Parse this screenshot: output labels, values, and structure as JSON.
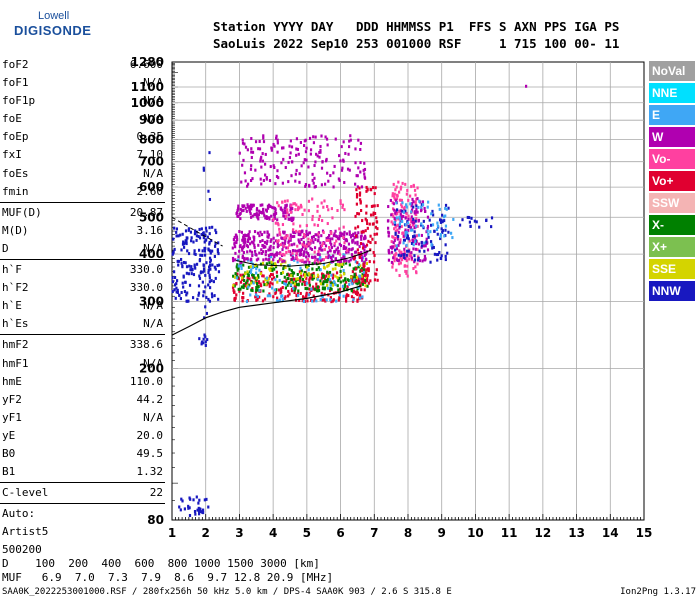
{
  "logo": {
    "line1": "Lowell",
    "line2": "DIGISONDE"
  },
  "header": {
    "row1": "Station YYYY DAY   DDD HHMMSS P1  FFS S AXN PPS IGA PS",
    "row2": "SaoLuis 2022 Sep10 253 001000 RSF     1 715 100 00- 11"
  },
  "params": {
    "group1": [
      {
        "name": "foF2",
        "value": "6.600"
      },
      {
        "name": "foF1",
        "value": "N/A"
      },
      {
        "name": "foF1p",
        "value": "N/A"
      },
      {
        "name": "foE",
        "value": "N/A"
      },
      {
        "name": "foEp",
        "value": "0.35"
      },
      {
        "name": "fxI",
        "value": "7.10"
      },
      {
        "name": "foEs",
        "value": "N/A"
      },
      {
        "name": "fmin",
        "value": "2.60"
      }
    ],
    "group2": [
      {
        "name": "MUF(D)",
        "value": "20.87"
      },
      {
        "name": "M(D)",
        "value": "3.16"
      },
      {
        "name": "D",
        "value": "N/A"
      }
    ],
    "group3": [
      {
        "name": "h`F",
        "value": "330.0"
      },
      {
        "name": "h`F2",
        "value": "330.0"
      },
      {
        "name": "h`E",
        "value": "N/A"
      },
      {
        "name": "h`Es",
        "value": "N/A"
      }
    ],
    "group4": [
      {
        "name": "hmF2",
        "value": "338.6"
      },
      {
        "name": "hmF1",
        "value": "N/A"
      },
      {
        "name": "hmE",
        "value": "110.0"
      },
      {
        "name": "yF2",
        "value": "44.2"
      },
      {
        "name": "yF1",
        "value": "N/A"
      },
      {
        "name": "yE",
        "value": "20.0"
      },
      {
        "name": "B0",
        "value": "49.5"
      },
      {
        "name": "B1",
        "value": "1.32"
      }
    ],
    "clevel": {
      "name": "C-level",
      "value": "22"
    },
    "auto": [
      "Auto:",
      "Artist5",
      "500200"
    ]
  },
  "legend": [
    {
      "label": "NoVal",
      "color": "#a0a0a0"
    },
    {
      "label": "NNE",
      "color": "#00e0ff"
    },
    {
      "label": "E",
      "color": "#3fa7f5"
    },
    {
      "label": "W",
      "color": "#b000b0"
    },
    {
      "label": "Vo-",
      "color": "#ff40a0"
    },
    {
      "label": "Vo+",
      "color": "#e00030"
    },
    {
      "label": "SSW",
      "color": "#f4b4b4"
    },
    {
      "label": "X-",
      "color": "#008000"
    },
    {
      "label": "X+",
      "color": "#7cc050"
    },
    {
      "label": "SSE",
      "color": "#d4d400"
    },
    {
      "label": "NNW",
      "color": "#1818c0"
    }
  ],
  "footer": {
    "d_row": "D    100  200  400  600  800 1000 1500 3000 [km]",
    "muf_row": "MUF   6.9  7.0  7.3  7.9  8.6  9.7 12.8 20.9 [MHz]",
    "filename": "SAA0K_2022253001000.RSF / 280fx256h 50 kHz 5.0 km / DPS-4 SAA0K 903 / 2.6 S 315.8 E",
    "version": "Ion2Png 1.3.17"
  },
  "chart_data": {
    "type": "scatter",
    "xlim": [
      1,
      15
    ],
    "ylim": [
      80,
      1280
    ],
    "x_ticks": [
      1,
      2,
      3,
      4,
      5,
      6,
      7,
      8,
      9,
      10,
      11,
      12,
      13,
      14,
      15
    ],
    "y_ticks": [
      80,
      200,
      300,
      400,
      500,
      600,
      700,
      800,
      900,
      1000,
      1100,
      1280
    ],
    "y_scale": "log",
    "grid": true,
    "clusters": [
      {
        "x": [
          1.1,
          2.1
        ],
        "y": [
          82,
          92
        ],
        "color": "#1818c0",
        "n": 30
      },
      {
        "x": [
          1.8,
          2.1
        ],
        "y": [
          230,
          248
        ],
        "color": "#1818c0",
        "n": 10
      },
      {
        "x": [
          1.0,
          2.4
        ],
        "y": [
          300,
          470
        ],
        "color": "#1818c0",
        "n": 180
      },
      {
        "x": [
          1.9,
          2.2
        ],
        "y": [
          270,
          800
        ],
        "color": "#1818c0",
        "n": 20
      },
      {
        "x": [
          2.8,
          6.8
        ],
        "y": [
          300,
          360
        ],
        "color": "#e00030",
        "n": 250
      },
      {
        "x": [
          2.8,
          6.8
        ],
        "y": [
          320,
          380
        ],
        "color": "#008000",
        "n": 200
      },
      {
        "x": [
          2.8,
          6.8
        ],
        "y": [
          330,
          390
        ],
        "color": "#d4d400",
        "n": 80
      },
      {
        "x": [
          2.8,
          6.8
        ],
        "y": [
          300,
          400
        ],
        "color": "#3fa7f5",
        "n": 100
      },
      {
        "x": [
          2.8,
          6.8
        ],
        "y": [
          380,
          460
        ],
        "color": "#b000b0",
        "n": 400
      },
      {
        "x": [
          2.9,
          4.6
        ],
        "y": [
          490,
          540
        ],
        "color": "#b000b0",
        "n": 120
      },
      {
        "x": [
          3.0,
          6.8
        ],
        "y": [
          600,
          820
        ],
        "color": "#b000b0",
        "n": 180
      },
      {
        "x": [
          4.0,
          6.2
        ],
        "y": [
          380,
          560
        ],
        "color": "#ff40a0",
        "n": 120
      },
      {
        "x": [
          6.4,
          7.1
        ],
        "y": [
          330,
          600
        ],
        "color": "#e00030",
        "n": 100
      },
      {
        "x": [
          7.5,
          8.3
        ],
        "y": [
          350,
          620
        ],
        "color": "#ff40a0",
        "n": 150
      },
      {
        "x": [
          7.4,
          8.6
        ],
        "y": [
          380,
          560
        ],
        "color": "#b000b0",
        "n": 120
      },
      {
        "x": [
          7.6,
          9.2
        ],
        "y": [
          380,
          540
        ],
        "color": "#1818c0",
        "n": 90
      },
      {
        "x": [
          7.6,
          9.4
        ],
        "y": [
          420,
          560
        ],
        "color": "#3fa7f5",
        "n": 60
      },
      {
        "x": [
          9.5,
          10.6
        ],
        "y": [
          470,
          500
        ],
        "color": "#1818c0",
        "n": 15
      },
      {
        "x": [
          11.5,
          11.5
        ],
        "y": [
          1105,
          1105
        ],
        "color": "#b000b0",
        "n": 1
      }
    ],
    "profile_curve": [
      [
        1.0,
        245
      ],
      [
        1.5,
        258
      ],
      [
        2.0,
        272
      ],
      [
        2.5,
        282
      ],
      [
        3.0,
        290
      ],
      [
        4.0,
        298
      ],
      [
        5.0,
        306
      ],
      [
        6.0,
        318
      ],
      [
        6.6,
        330
      ]
    ],
    "trace_curve": [
      [
        2.9,
        385
      ],
      [
        3.5,
        375
      ],
      [
        4.5,
        372
      ],
      [
        5.5,
        378
      ],
      [
        6.2,
        390
      ],
      [
        6.6,
        400
      ],
      [
        6.9,
        410
      ]
    ],
    "dashed_curve": [
      [
        1.0,
        500
      ],
      [
        1.8,
        455
      ],
      [
        2.5,
        420
      ]
    ]
  }
}
